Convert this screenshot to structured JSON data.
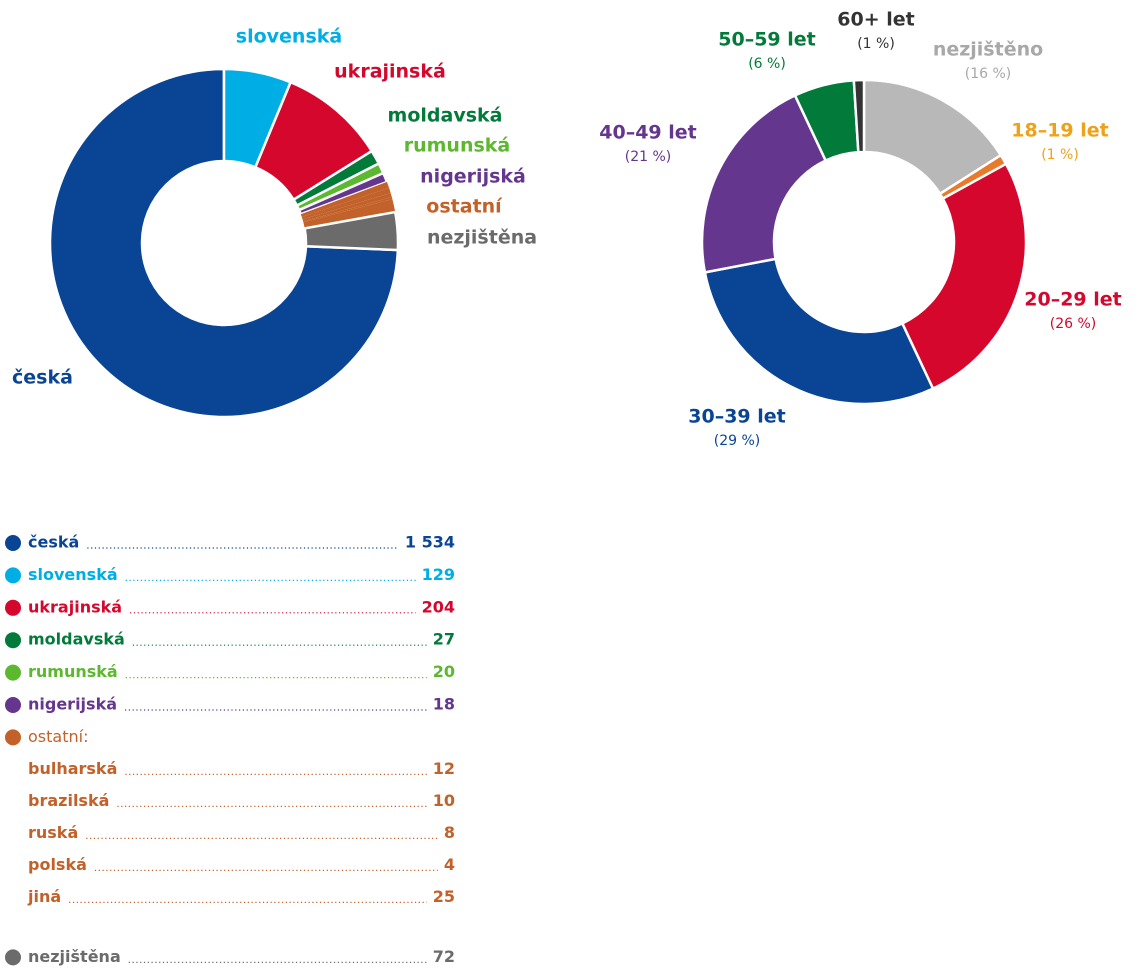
{
  "chart_data": [
    {
      "type": "donut",
      "slices": [
        {
          "name": "česká",
          "color": "#0a4595",
          "value": 1534,
          "value_label": "1 534"
        },
        {
          "name": "slovenská",
          "color": "#00aee6",
          "value": 129
        },
        {
          "name": "ukrajinská",
          "color": "#d5072c",
          "value": 204
        },
        {
          "name": "moldavská",
          "color": "#027a3a",
          "value": 27
        },
        {
          "name": "rumunská",
          "color": "#5cb82e",
          "value": 20
        },
        {
          "name": "nigerijská",
          "color": "#65368e",
          "value": 18
        },
        {
          "name": "ostatní",
          "legend_name": "ostatní:",
          "color": "#c2622a",
          "parts": [
            {
              "name": "bulharská",
              "value": 12
            },
            {
              "name": "brazilská",
              "value": 10
            },
            {
              "name": "ruská",
              "value": 8
            },
            {
              "name": "polská",
              "value": 4
            },
            {
              "name": "jiná",
              "value": 25
            }
          ]
        },
        {
          "name": "nezjištěna",
          "color": "#6b6b6b",
          "value": 72
        }
      ]
    },
    {
      "type": "donut",
      "categories": [
        "nezjištěno",
        "18–19 let",
        "20–29 let",
        "30–39 let",
        "40–49 let",
        "50–59 let",
        "60+ let"
      ],
      "values": [
        16,
        1,
        26,
        29,
        21,
        6,
        1
      ],
      "value_labels": [
        "(16 %)",
        "(1 %)",
        "(26 %)",
        "(29 %)",
        "(21 %)",
        "(6 %)",
        "(1 %)"
      ],
      "colors": [
        "#b8b8b8",
        "#e87a2b",
        "#d5072c",
        "#0a4595",
        "#65368e",
        "#027a3a",
        "#333333"
      ],
      "label_colors": [
        "#a8a8a8",
        "#eda21a",
        "#d5072c",
        "#0a4595",
        "#65368e",
        "#027a3a",
        "#333333"
      ]
    }
  ]
}
